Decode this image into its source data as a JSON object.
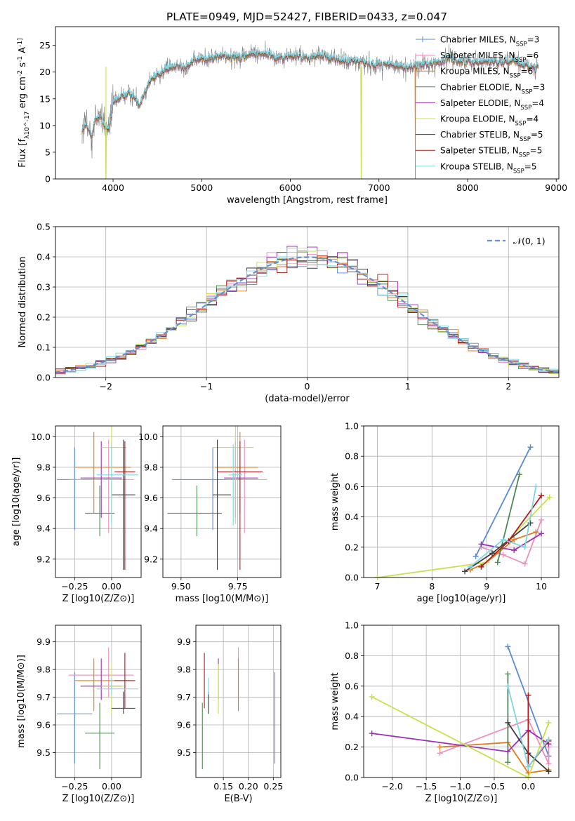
{
  "figure": {
    "title": "PLATE=0949, MJD=52427, FIBERID=0433, z=0.047"
  },
  "colors": {
    "Chabrier MILES": "#5b8bd6",
    "Salpeter MILES": "#ee90bb",
    "Kroupa MILES": "#e07b1e",
    "Chabrier ELODIE": "#4f8a55",
    "Salpeter ELODIE": "#9a2fb6",
    "Kroupa ELODIE": "#c8e04c",
    "Chabrier STELIB": "#3f3f3f",
    "Salpeter STELIB": "#b01a1a",
    "Kroupa STELIB": "#7fd6e0",
    "data": "#808080",
    "normal": "#6a90d0"
  },
  "chart_data": [
    {
      "id": "spectrum",
      "type": "line",
      "title": "PLATE=0949, MJD=52427, FIBERID=0433, z=0.047",
      "xlabel": "wavelength [Angstrom, rest frame]",
      "ylabel": "Flux [f_λ10^-17 erg cm^-2 s^-1 A^-1]",
      "xlim": [
        3350,
        9030
      ],
      "ylim": [
        0,
        28.5
      ],
      "xticks": [
        4000,
        5000,
        6000,
        7000,
        8000,
        9000
      ],
      "yticks": [
        0,
        5,
        10,
        15,
        20,
        25
      ],
      "grid": false,
      "legend": {
        "position": "right",
        "entries": [
          {
            "name": "Chabrier MILES",
            "n_ssp": 3
          },
          {
            "name": "Salpeter MILES",
            "n_ssp": 6
          },
          {
            "name": "Kroupa MILES",
            "n_ssp": 6
          },
          {
            "name": "Chabrier ELODIE",
            "n_ssp": 3
          },
          {
            "name": "Salpeter ELODIE",
            "n_ssp": 4
          },
          {
            "name": "Kroupa ELODIE",
            "n_ssp": 4
          },
          {
            "name": "Chabrier STELIB",
            "n_ssp": 5
          },
          {
            "name": "Salpeter STELIB",
            "n_ssp": 5
          },
          {
            "name": "Kroupa STELIB",
            "n_ssp": 5
          }
        ]
      },
      "continuum": {
        "x": [
          3650,
          3700,
          3750,
          3800,
          3850,
          3900,
          3950,
          4000,
          4100,
          4200,
          4300,
          4400,
          4500,
          4600,
          4700,
          4800,
          4900,
          5000,
          5100,
          5200,
          5300,
          5400,
          5500,
          5600,
          5700,
          5800,
          5900,
          6000,
          6100,
          6200,
          6300,
          6400,
          6500,
          6600,
          6700,
          6800,
          6900,
          7000,
          7100,
          7200,
          7300,
          7400,
          7500,
          7600,
          7700,
          7800,
          7900,
          8000,
          8100,
          8200,
          8300,
          8400,
          8500,
          8600,
          8700,
          8800
        ],
        "y": [
          9,
          10,
          8,
          11,
          12,
          10,
          9,
          14,
          15.5,
          16,
          14,
          18,
          19.5,
          20.5,
          21,
          21,
          22,
          22.5,
          22.5,
          23,
          23,
          23,
          23,
          23.5,
          23.5,
          23,
          22.5,
          23,
          23,
          22.5,
          23,
          23,
          22.5,
          22,
          22,
          22,
          21.5,
          21.5,
          21.5,
          21,
          21,
          21,
          21.5,
          21.5,
          22,
          22.5,
          22,
          22,
          22,
          22,
          22,
          22,
          22,
          21.5,
          21,
          21
        ]
      },
      "wavelength_range": [
        3650,
        8800
      ],
      "dips": [
        {
          "x": 3920,
          "y": 0,
          "series": "Kroupa ELODIE"
        },
        {
          "x": 6800,
          "y": 0,
          "series": "Kroupa ELODIE"
        },
        {
          "x": 7410,
          "y": 0,
          "series": "Kroupa MILES"
        }
      ]
    },
    {
      "id": "residuals",
      "type": "line",
      "xlabel": "(data-model)/error",
      "ylabel": "Normed distribution",
      "xlim": [
        -2.5,
        2.5
      ],
      "ylim": [
        0,
        0.5
      ],
      "xticks": [
        -2,
        -1,
        0,
        1,
        2
      ],
      "yticks": [
        0.0,
        0.1,
        0.2,
        0.3,
        0.4,
        0.5
      ],
      "grid": true,
      "bin_width": 0.1,
      "legend": {
        "position": "top-right",
        "entries": [
          {
            "name": "𝒩(0, 1)"
          }
        ]
      },
      "normal_curve": {
        "mean": 0,
        "sigma": 1
      }
    },
    {
      "id": "z-vs-age",
      "type": "scatter",
      "xlabel": "Z [log10(Z/Z⊙)]",
      "ylabel": "age [log10(age/yr)]",
      "xlim": [
        -0.38,
        0.2
      ],
      "ylim": [
        9.08,
        10.07
      ],
      "xticks": [
        -0.25,
        0.0
      ],
      "yticks": [
        9.2,
        9.4,
        9.6,
        9.8,
        10.0
      ],
      "grid": true,
      "points": [
        {
          "series": "Chabrier MILES",
          "x": -0.25,
          "y": 9.72,
          "x_err": [
            0.12,
            0.12
          ],
          "y_err": [
            0.33,
            0.21
          ]
        },
        {
          "series": "Salpeter MILES",
          "x": -0.02,
          "y": 9.72,
          "x_err": [
            0.27,
            0.17
          ],
          "y_err": [
            0.35,
            0.26
          ]
        },
        {
          "series": "Kroupa MILES",
          "x": -0.12,
          "y": 9.8,
          "x_err": [
            0.13,
            0.25
          ],
          "y_err": [
            0.3,
            0.23
          ]
        },
        {
          "series": "Chabrier ELODIE",
          "x": -0.08,
          "y": 9.5,
          "x_err": [
            0.1,
            0.1
          ],
          "y_err": [
            0.15,
            0.18
          ]
        },
        {
          "series": "Salpeter ELODIE",
          "x": -0.07,
          "y": 9.73,
          "x_err": [
            0.14,
            0.14
          ],
          "y_err": [
            0.26,
            0.24
          ]
        },
        {
          "series": "Kroupa ELODIE",
          "x": 0.0,
          "y": 9.93,
          "x_err": [
            0.07,
            0.1
          ],
          "y_err": [
            0.5,
            0.15
          ]
        },
        {
          "series": "Chabrier STELIB",
          "x": 0.08,
          "y": 9.62,
          "x_err": [
            0.08,
            0.08
          ],
          "y_err": [
            0.49,
            0.36
          ]
        },
        {
          "series": "Salpeter STELIB",
          "x": 0.09,
          "y": 9.77,
          "x_err": [
            0.07,
            0.07
          ],
          "y_err": [
            0.64,
            0.2
          ]
        },
        {
          "series": "Kroupa STELIB",
          "x": 0.0,
          "y": 9.75,
          "x_err": [
            0.1,
            0.18
          ],
          "y_err": [
            0.33,
            0.2
          ]
        }
      ]
    },
    {
      "id": "mass-vs-age",
      "type": "scatter",
      "xlabel": "mass [log10(M/M⊙)]",
      "ylabel": "",
      "xlim": [
        9.42,
        9.94
      ],
      "ylim": [
        9.08,
        10.07
      ],
      "xticks": [
        9.5,
        9.75
      ],
      "yticks": [
        9.2,
        9.4,
        9.6,
        9.8,
        10.0
      ],
      "grid": true,
      "points": [
        {
          "series": "Chabrier MILES",
          "x": 9.64,
          "y": 9.72,
          "x_err": [
            0.18,
            0.15
          ],
          "y_err": [
            0.33,
            0.21
          ]
        },
        {
          "series": "Salpeter MILES",
          "x": 9.78,
          "y": 9.72,
          "x_err": [
            0.08,
            0.1
          ],
          "y_err": [
            0.35,
            0.26
          ]
        },
        {
          "series": "Kroupa MILES",
          "x": 9.76,
          "y": 9.8,
          "x_err": [
            0.11,
            0.08
          ],
          "y_err": [
            0.3,
            0.23
          ]
        },
        {
          "series": "Chabrier ELODIE",
          "x": 9.57,
          "y": 9.5,
          "x_err": [
            0.13,
            0.11
          ],
          "y_err": [
            0.15,
            0.18
          ]
        },
        {
          "series": "Salpeter ELODIE",
          "x": 9.74,
          "y": 9.73,
          "x_err": [
            0.05,
            0.1
          ],
          "y_err": [
            0.26,
            0.24
          ]
        },
        {
          "series": "Kroupa ELODIE",
          "x": 9.74,
          "y": 9.93,
          "x_err": [
            0.1,
            0.08
          ],
          "y_err": [
            0.5,
            0.15
          ]
        },
        {
          "series": "Chabrier STELIB",
          "x": 9.66,
          "y": 9.62,
          "x_err": [
            0.02,
            0.06
          ],
          "y_err": [
            0.49,
            0.36
          ]
        },
        {
          "series": "Salpeter STELIB",
          "x": 9.76,
          "y": 9.77,
          "x_err": [
            0.1,
            0.1
          ],
          "y_err": [
            0.64,
            0.2
          ]
        },
        {
          "series": "Kroupa STELIB",
          "x": 9.73,
          "y": 9.75,
          "x_err": [
            0.02,
            0.04
          ],
          "y_err": [
            0.33,
            0.2
          ]
        }
      ]
    },
    {
      "id": "age-weights",
      "type": "line",
      "xlabel": "age [log10(age/yr)]",
      "ylabel": "mass weight",
      "xlim": [
        6.75,
        10.32
      ],
      "ylim": [
        0,
        1.0
      ],
      "xticks": [
        7,
        8,
        9,
        10
      ],
      "yticks": [
        0.0,
        0.2,
        0.4,
        0.6,
        0.8,
        1.0
      ],
      "grid": true,
      "series": [
        {
          "name": "Chabrier MILES",
          "x": [
            8.8,
            9.8
          ],
          "y": [
            0.14,
            0.86
          ]
        },
        {
          "name": "Salpeter MILES",
          "x": [
            8.9,
            9.3,
            9.7,
            10.0
          ],
          "y": [
            0.2,
            0.15,
            0.09,
            0.38
          ]
        },
        {
          "name": "Kroupa MILES",
          "x": [
            8.7,
            9.0,
            9.5,
            9.9
          ],
          "y": [
            0.05,
            0.1,
            0.25,
            0.3
          ]
        },
        {
          "name": "Chabrier ELODIE",
          "x": [
            9.2,
            9.6
          ],
          "y": [
            0.1,
            0.68
          ]
        },
        {
          "name": "Salpeter ELODIE",
          "x": [
            8.9,
            9.5,
            10.0
          ],
          "y": [
            0.22,
            0.18,
            0.29
          ]
        },
        {
          "name": "Kroupa ELODIE",
          "x": [
            7.0,
            9.0,
            10.15
          ],
          "y": [
            0.0,
            0.1,
            0.53
          ]
        },
        {
          "name": "Chabrier STELIB",
          "x": [
            8.6,
            9.1,
            9.8
          ],
          "y": [
            0.04,
            0.16,
            0.36
          ]
        },
        {
          "name": "Salpeter STELIB",
          "x": [
            8.9,
            9.4,
            10.0
          ],
          "y": [
            0.07,
            0.24,
            0.54
          ]
        },
        {
          "name": "Kroupa STELIB",
          "x": [
            8.7,
            9.3,
            9.7,
            9.9
          ],
          "y": [
            0.07,
            0.25,
            0.2,
            0.6
          ]
        }
      ]
    },
    {
      "id": "z-vs-mass",
      "type": "scatter",
      "xlabel": "Z [log10(Z/Z⊙)]",
      "ylabel": "mass [log10(M/M⊙)]",
      "xlim": [
        -0.38,
        0.2
      ],
      "ylim": [
        9.41,
        9.96
      ],
      "xticks": [
        -0.25,
        0.0
      ],
      "yticks": [
        9.5,
        9.6,
        9.7,
        9.8,
        9.9
      ],
      "grid": true,
      "points": [
        {
          "series": "Chabrier MILES",
          "x": -0.25,
          "y": 9.64,
          "x_err": [
            0.12,
            0.12
          ],
          "y_err": [
            0.18,
            0.15
          ]
        },
        {
          "series": "Salpeter MILES",
          "x": -0.02,
          "y": 9.78,
          "x_err": [
            0.27,
            0.17
          ],
          "y_err": [
            0.08,
            0.1
          ]
        },
        {
          "series": "Kroupa MILES",
          "x": -0.12,
          "y": 9.76,
          "x_err": [
            0.13,
            0.25
          ],
          "y_err": [
            0.11,
            0.08
          ]
        },
        {
          "series": "Chabrier ELODIE",
          "x": -0.08,
          "y": 9.57,
          "x_err": [
            0.1,
            0.1
          ],
          "y_err": [
            0.13,
            0.11
          ]
        },
        {
          "series": "Salpeter ELODIE",
          "x": -0.07,
          "y": 9.74,
          "x_err": [
            0.14,
            0.14
          ],
          "y_err": [
            0.05,
            0.1
          ]
        },
        {
          "series": "Kroupa ELODIE",
          "x": 0.0,
          "y": 9.74,
          "x_err": [
            0.07,
            0.1
          ],
          "y_err": [
            0.1,
            0.08
          ]
        },
        {
          "series": "Chabrier STELIB",
          "x": 0.08,
          "y": 9.66,
          "x_err": [
            0.08,
            0.08
          ],
          "y_err": [
            0.02,
            0.06
          ]
        },
        {
          "series": "Salpeter STELIB",
          "x": 0.09,
          "y": 9.76,
          "x_err": [
            0.07,
            0.07
          ],
          "y_err": [
            0.1,
            0.1
          ]
        },
        {
          "series": "Kroupa STELIB",
          "x": 0.0,
          "y": 9.73,
          "x_err": [
            0.1,
            0.18
          ],
          "y_err": [
            0.02,
            0.04
          ]
        }
      ]
    },
    {
      "id": "ebv-vs-mass",
      "type": "scatter",
      "xlabel": "E(B-V)",
      "ylabel": "",
      "xlim": [
        0.095,
        0.265
      ],
      "ylim": [
        9.41,
        9.96
      ],
      "xticks": [
        0.15,
        0.2,
        0.25
      ],
      "yticks": [
        9.5,
        9.6,
        9.7,
        9.8,
        9.9
      ],
      "grid": true,
      "points": [
        {
          "series": "Chabrier MILES",
          "x": 0.253,
          "y": 9.64,
          "y_err": [
            0.18,
            0.15
          ]
        },
        {
          "series": "Salpeter MILES",
          "x": 0.18,
          "y": 9.78,
          "y_err": [
            0.08,
            0.1
          ]
        },
        {
          "series": "Kroupa MILES",
          "x": 0.18,
          "y": 9.76,
          "y_err": [
            0.11,
            0.08
          ]
        },
        {
          "series": "Chabrier ELODIE",
          "x": 0.108,
          "y": 9.57,
          "y_err": [
            0.13,
            0.11
          ]
        },
        {
          "series": "Salpeter ELODIE",
          "x": 0.14,
          "y": 9.74,
          "y_err": [
            0.05,
            0.1
          ]
        },
        {
          "series": "Kroupa ELODIE",
          "x": 0.14,
          "y": 9.74,
          "y_err": [
            0.1,
            0.08
          ]
        },
        {
          "series": "Chabrier STELIB",
          "x": 0.12,
          "y": 9.66,
          "y_err": [
            0.02,
            0.06
          ]
        },
        {
          "series": "Salpeter STELIB",
          "x": 0.112,
          "y": 9.76,
          "y_err": [
            0.1,
            0.1
          ]
        },
        {
          "series": "Kroupa STELIB",
          "x": 0.12,
          "y": 9.73,
          "y_err": [
            0.02,
            0.04
          ]
        }
      ]
    },
    {
      "id": "z-weights",
      "type": "line",
      "xlabel": "Z [log10(Z/Z⊙)]",
      "ylabel": "mass weight",
      "xlim": [
        -2.42,
        0.45
      ],
      "ylim": [
        0,
        1.0
      ],
      "xticks": [
        -2.0,
        -1.5,
        -1.0,
        -0.5,
        0.0
      ],
      "yticks": [
        0.0,
        0.2,
        0.4,
        0.6,
        0.8,
        1.0
      ],
      "grid": true,
      "series": [
        {
          "name": "Chabrier MILES",
          "x": [
            -0.3,
            0.3
          ],
          "y": [
            0.86,
            0.14
          ]
        },
        {
          "name": "Salpeter MILES",
          "x": [
            -1.3,
            0.0,
            0.3,
            0.3
          ],
          "y": [
            0.16,
            0.38,
            0.09,
            0.2
          ]
        },
        {
          "name": "Kroupa MILES",
          "x": [
            -1.3,
            -0.3,
            0.0,
            0.3
          ],
          "y": [
            0.2,
            0.23,
            0.03,
            0.05
          ]
        },
        {
          "name": "Chabrier ELODIE",
          "x": [
            -0.3,
            -0.3
          ],
          "y": [
            0.68,
            0.1
          ]
        },
        {
          "name": "Salpeter ELODIE",
          "x": [
            -2.3,
            -0.3,
            0.0,
            0.3
          ],
          "y": [
            0.29,
            0.17,
            0.31,
            0.22
          ]
        },
        {
          "name": "Kroupa ELODIE",
          "x": [
            -2.3,
            0.0,
            0.3
          ],
          "y": [
            0.53,
            0.0,
            0.36
          ]
        },
        {
          "name": "Chabrier STELIB",
          "x": [
            -0.3,
            0.0,
            0.3
          ],
          "y": [
            0.36,
            0.16,
            0.04
          ]
        },
        {
          "name": "Salpeter STELIB",
          "x": [
            0.0,
            0.0,
            0.3
          ],
          "y": [
            0.54,
            0.07,
            0.24
          ]
        },
        {
          "name": "Kroupa STELIB",
          "x": [
            -0.3,
            0.0,
            0.3
          ],
          "y": [
            0.6,
            0.07,
            0.25
          ]
        }
      ]
    }
  ]
}
